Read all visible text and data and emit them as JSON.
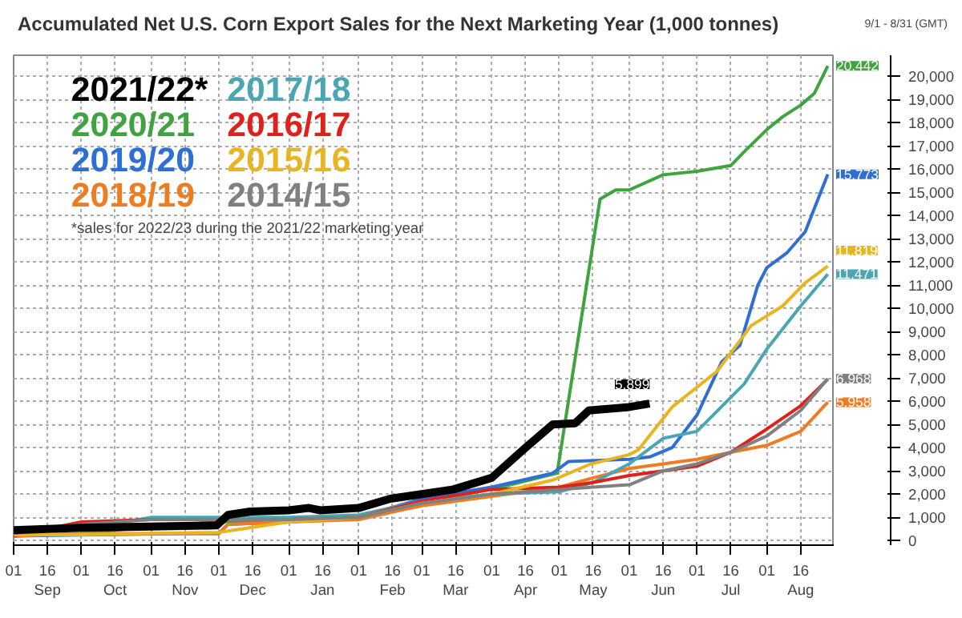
{
  "chart_data": {
    "type": "line",
    "title": "Accumulated Net U.S. Corn Export Sales for the Next Marketing Year (1,000 tonnes)",
    "annotations": [
      "9/1 - 8/31 (GMT)",
      "*sales for 2022/23 during the 2021/22 marketing year"
    ],
    "legend": "top left",
    "grid": true,
    "line_style": "solid",
    "xlim": [
      "2021-09-01",
      "2022-08-31"
    ],
    "xticks": [
      {
        "value": "2021-09-01",
        "label": "01"
      },
      {
        "value": "2021-09-16",
        "label": "16\nSep"
      },
      {
        "value": "2021-10-01",
        "label": "01"
      },
      {
        "value": "2021-10-16",
        "label": "16\nOct"
      },
      {
        "value": "2021-11-01",
        "label": "01"
      },
      {
        "value": "2021-11-16",
        "label": "16\nNov"
      },
      {
        "value": "2021-12-01",
        "label": "01"
      },
      {
        "value": "2021-12-16",
        "label": "16\nDec"
      },
      {
        "value": "2022-01-01",
        "label": "01"
      },
      {
        "value": "2022-01-16",
        "label": "16\nJan"
      },
      {
        "value": "2022-02-01",
        "label": "01"
      },
      {
        "value": "2022-02-16",
        "label": "16\nFeb"
      },
      {
        "value": "2022-03-01",
        "label": "01"
      },
      {
        "value": "2022-03-16",
        "label": "16\nMar"
      },
      {
        "value": "2022-04-01",
        "label": "01"
      },
      {
        "value": "2022-04-16",
        "label": "16\nApr"
      },
      {
        "value": "2022-05-01",
        "label": "01"
      },
      {
        "value": "2022-05-16",
        "label": "16\nMay"
      },
      {
        "value": "2022-06-01",
        "label": "01"
      },
      {
        "value": "2022-06-16",
        "label": "16\nJun"
      },
      {
        "value": "2022-07-01",
        "label": "01"
      },
      {
        "value": "2022-07-16",
        "label": "16\nJul"
      },
      {
        "value": "2022-08-01",
        "label": "01"
      },
      {
        "value": "2022-08-16",
        "label": "16\nAug"
      }
    ],
    "ylim": [
      -200,
      20900
    ],
    "yticks": [
      0,
      {
        "value": 1000,
        "label": "1,000"
      },
      {
        "value": 2000,
        "label": "2,000"
      },
      {
        "value": 3000,
        "label": "3,000"
      },
      {
        "value": 4000,
        "label": "4,000"
      },
      {
        "value": 5000,
        "label": "5,000"
      },
      {
        "value": 6000,
        "label": "6,000"
      },
      {
        "value": 7000,
        "label": "7,000"
      },
      {
        "value": 8000,
        "label": "8,000"
      },
      {
        "value": 9000,
        "label": "9,000"
      },
      {
        "value": 10000,
        "label": "10,000"
      },
      {
        "value": 11000,
        "label": "11,000"
      },
      {
        "value": 12000,
        "label": "12,000"
      },
      {
        "value": 13000,
        "label": "13,000"
      },
      {
        "value": 14000,
        "label": "14,000"
      },
      {
        "value": 15000,
        "label": "15,000"
      },
      {
        "value": 16000,
        "label": "16,000"
      },
      {
        "value": 17000,
        "label": "17,000"
      },
      {
        "value": 18000,
        "label": "18,000"
      },
      {
        "value": 19000,
        "label": "19,000"
      },
      {
        "value": 20000,
        "label": "20,000"
      }
    ],
    "series": [
      {
        "name": "2021/22*",
        "color": "#000000",
        "x": [
          "2021-09-01",
          "2021-10-01",
          "2021-11-01",
          "2021-11-30",
          "2021-12-05",
          "2021-12-15",
          "2022-01-01",
          "2022-01-10",
          "2022-01-15",
          "2022-02-01",
          "2022-02-15",
          "2022-03-01",
          "2022-03-15",
          "2022-04-01",
          "2022-04-16",
          "2022-04-28",
          "2022-05-08",
          "2022-05-14",
          "2022-06-01",
          "2022-06-10"
        ],
        "values": [
          450,
          550,
          600,
          650,
          1100,
          1250,
          1300,
          1400,
          1300,
          1400,
          1800,
          2000,
          2200,
          2700,
          4000,
          5000,
          5050,
          5600,
          5750,
          5899
        ],
        "value_labels": [
          null,
          null,
          null,
          null,
          null,
          null,
          null,
          null,
          null,
          null,
          null,
          null,
          null,
          null,
          null,
          null,
          null,
          null,
          null,
          "5,899"
        ]
      },
      {
        "name": "2020/21",
        "color": "#3fa33f",
        "x": [
          "2021-09-01",
          "2021-10-01",
          "2021-11-01",
          "2021-12-01",
          "2022-01-01",
          "2022-02-01",
          "2022-02-15",
          "2022-03-01",
          "2022-04-01",
          "2022-04-30",
          "2022-05-19",
          "2022-05-26",
          "2022-06-01",
          "2022-06-16",
          "2022-07-01",
          "2022-07-16",
          "2022-07-22",
          "2022-08-01",
          "2022-08-08",
          "2022-08-16",
          "2022-08-22",
          "2022-08-28"
        ],
        "values": [
          200,
          300,
          600,
          800,
          900,
          1000,
          1400,
          1700,
          2200,
          2900,
          14700,
          15100,
          15100,
          15750,
          15900,
          16150,
          16750,
          17700,
          18250,
          18750,
          19250,
          20442
        ],
        "value_labels": [
          null,
          null,
          null,
          null,
          null,
          null,
          null,
          null,
          null,
          null,
          null,
          null,
          null,
          null,
          null,
          null,
          null,
          null,
          null,
          null,
          null,
          "20,442"
        ]
      },
      {
        "name": "2019/20",
        "color": "#2e6fd6",
        "x": [
          "2021-09-01",
          "2021-11-15",
          "2021-12-01",
          "2021-12-05",
          "2022-01-01",
          "2022-02-01",
          "2022-03-01",
          "2022-04-01",
          "2022-04-28",
          "2022-05-05",
          "2022-06-01",
          "2022-06-10",
          "2022-06-20",
          "2022-07-01",
          "2022-07-12",
          "2022-07-20",
          "2022-07-24",
          "2022-07-28",
          "2022-08-01",
          "2022-08-10",
          "2022-08-18",
          "2022-08-28"
        ],
        "values": [
          200,
          300,
          300,
          700,
          800,
          1000,
          1800,
          2300,
          2900,
          3400,
          3500,
          3600,
          4000,
          5400,
          7700,
          8400,
          9700,
          11000,
          11750,
          12400,
          13300,
          15773
        ],
        "value_labels": [
          null,
          null,
          null,
          null,
          null,
          null,
          null,
          null,
          null,
          null,
          null,
          null,
          null,
          null,
          null,
          null,
          null,
          null,
          null,
          null,
          null,
          "15,773"
        ]
      },
      {
        "name": "2018/19",
        "color": "#f07c22",
        "x": [
          "2021-09-01",
          "2021-10-01",
          "2021-11-01",
          "2021-12-01",
          "2021-12-05",
          "2022-01-01",
          "2022-02-01",
          "2022-03-01",
          "2022-04-01",
          "2022-05-01",
          "2022-05-16",
          "2022-06-01",
          "2022-06-16",
          "2022-07-01",
          "2022-07-16",
          "2022-08-01",
          "2022-08-16",
          "2022-08-28"
        ],
        "values": [
          200,
          300,
          300,
          300,
          700,
          800,
          900,
          1500,
          1900,
          2300,
          2700,
          3100,
          3300,
          3500,
          3800,
          4100,
          4700,
          5958
        ],
        "value_labels": [
          null,
          null,
          null,
          null,
          null,
          null,
          null,
          null,
          null,
          null,
          null,
          null,
          null,
          null,
          null,
          null,
          null,
          "5,958"
        ]
      },
      {
        "name": "2017/18",
        "color": "#4aa6b5",
        "x": [
          "2021-09-01",
          "2021-10-15",
          "2021-11-01",
          "2021-12-01",
          "2022-01-01",
          "2022-02-01",
          "2022-03-01",
          "2022-04-01",
          "2022-05-01",
          "2022-05-16",
          "2022-06-01",
          "2022-06-16",
          "2022-07-01",
          "2022-07-22",
          "2022-08-01",
          "2022-08-16",
          "2022-08-28"
        ],
        "values": [
          300,
          700,
          1000,
          1000,
          1000,
          1100,
          1700,
          2000,
          2100,
          2500,
          3300,
          4400,
          4700,
          6750,
          8250,
          10100,
          11471
        ],
        "value_labels": [
          null,
          null,
          null,
          null,
          null,
          null,
          null,
          null,
          null,
          null,
          null,
          null,
          null,
          null,
          null,
          null,
          "11,471"
        ]
      },
      {
        "name": "2016/17",
        "color": "#e0201b",
        "x": [
          "2021-09-01",
          "2021-10-01",
          "2021-11-01",
          "2021-12-01",
          "2022-01-01",
          "2022-02-01",
          "2022-03-01",
          "2022-04-01",
          "2022-05-01",
          "2022-05-16",
          "2022-06-01",
          "2022-06-16",
          "2022-07-01",
          "2022-07-16",
          "2022-08-01",
          "2022-08-16",
          "2022-08-28"
        ],
        "values": [
          200,
          800,
          900,
          900,
          900,
          1000,
          1700,
          2200,
          2300,
          2500,
          2800,
          3000,
          3200,
          3800,
          4800,
          5800,
          6950
        ]
      },
      {
        "name": "2015/16",
        "color": "#e8b520",
        "x": [
          "2021-09-01",
          "2021-10-01",
          "2021-12-01",
          "2022-01-01",
          "2022-02-01",
          "2022-03-01",
          "2022-04-01",
          "2022-04-28",
          "2022-05-15",
          "2022-06-01",
          "2022-06-05",
          "2022-06-20",
          "2022-07-10",
          "2022-07-25",
          "2022-08-08",
          "2022-08-18",
          "2022-08-28"
        ],
        "values": [
          250,
          250,
          350,
          800,
          1000,
          1600,
          2000,
          2600,
          3300,
          3700,
          3900,
          5750,
          7300,
          9250,
          10100,
          11100,
          11819
        ],
        "value_labels": [
          null,
          null,
          null,
          null,
          null,
          null,
          null,
          null,
          null,
          null,
          null,
          null,
          null,
          null,
          null,
          null,
          "11,819"
        ]
      },
      {
        "name": "2014/15",
        "color": "#808080",
        "x": [
          "2021-09-01",
          "2021-10-01",
          "2021-11-01",
          "2021-12-01",
          "2022-01-01",
          "2022-02-01",
          "2022-03-01",
          "2022-04-01",
          "2022-05-01",
          "2022-05-16",
          "2022-06-01",
          "2022-06-16",
          "2022-07-01",
          "2022-07-16",
          "2022-08-01",
          "2022-08-16",
          "2022-08-28"
        ],
        "values": [
          300,
          700,
          900,
          900,
          900,
          1000,
          1600,
          2000,
          2200,
          2300,
          2400,
          3000,
          3300,
          3800,
          4500,
          5600,
          6968
        ],
        "value_labels": [
          null,
          null,
          null,
          null,
          null,
          null,
          null,
          null,
          null,
          null,
          null,
          null,
          null,
          null,
          null,
          null,
          "6,968"
        ]
      }
    ]
  }
}
